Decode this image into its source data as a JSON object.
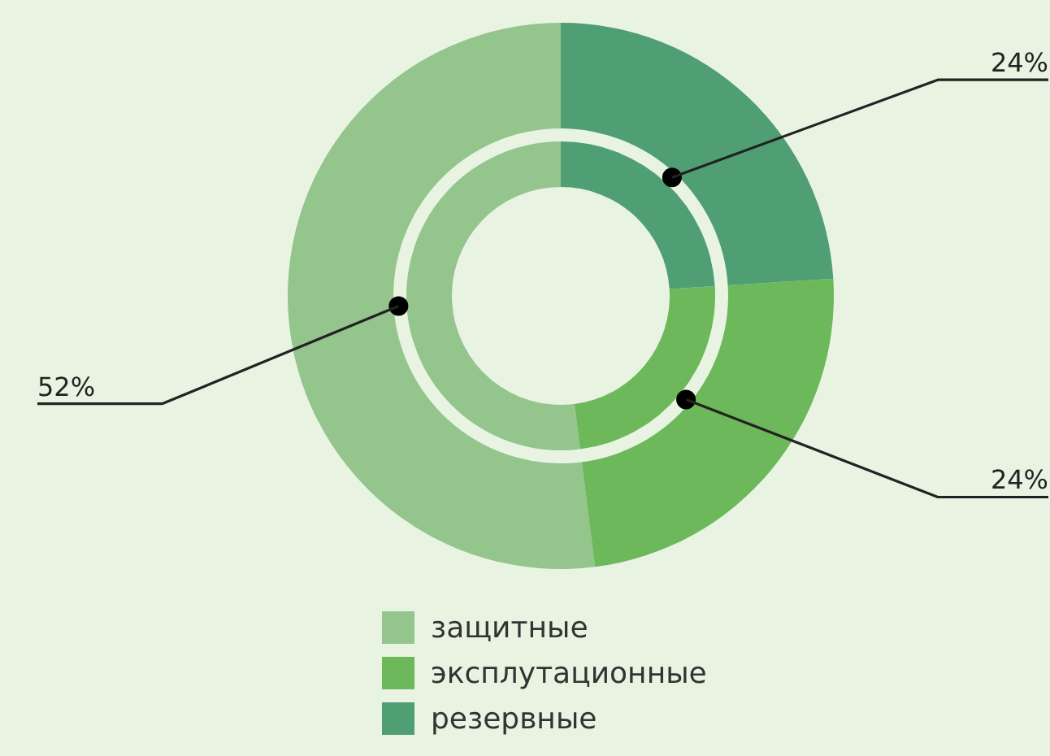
{
  "chart_data": {
    "type": "donut",
    "categories": [
      "защитные",
      "эксплутационные",
      "резервные"
    ],
    "series": [
      {
        "values": [
          52,
          24,
          24
        ],
        "value_labels": [
          "52%",
          "24%",
          "24%"
        ]
      },
      {
        "values": [
          52,
          24,
          24
        ]
      }
    ],
    "colors": [
      "#93c58d",
      "#6cb85a",
      "#4f9e74"
    ],
    "legend": "bottom"
  }
}
